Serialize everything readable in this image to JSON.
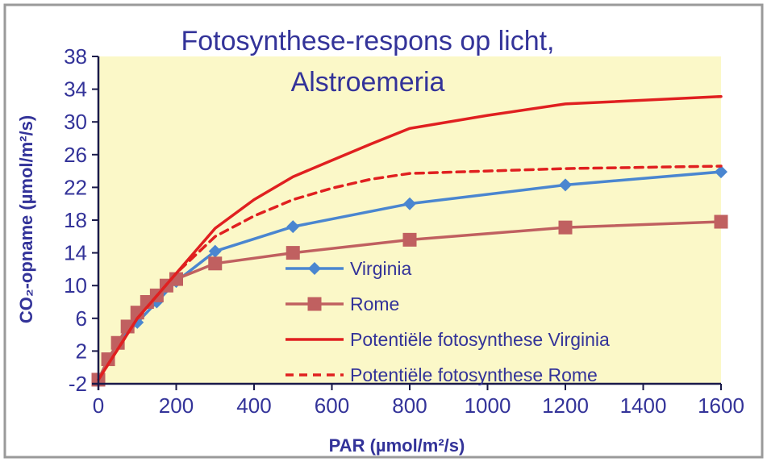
{
  "chart_data": {
    "type": "line",
    "title_lines": [
      "Fotosynthese-respons op licht,",
      "Alstroemeria"
    ],
    "xlabel": "PAR (µmol/m²/s)",
    "ylabel": "CO₂-opname (µmol/m²/s)",
    "xlim": [
      0,
      1600
    ],
    "ylim": [
      -2,
      38
    ],
    "x_ticks": [
      "0",
      "200",
      "400",
      "600",
      "800",
      "1000",
      "1200",
      "1400",
      "1600"
    ],
    "y_ticks": [
      "38",
      "34",
      "30",
      "26",
      "22",
      "18",
      "14",
      "10",
      "6",
      "2",
      "-2"
    ],
    "grid": false,
    "legend_position": "bottom-right",
    "colors": {
      "plot_background": "#fbf8c8",
      "frame_background": "#ffffff",
      "axis": "#1a1a4a",
      "text": "#333399"
    },
    "series": [
      {
        "name": "Virginia",
        "color": "#4a86d0",
        "marker": "diamond",
        "style": "solid",
        "points": [
          [
            0,
            -1.5
          ],
          [
            25,
            1
          ],
          [
            50,
            3
          ],
          [
            100,
            5.5
          ],
          [
            150,
            8
          ],
          [
            200,
            10.5
          ],
          [
            300,
            14.2
          ],
          [
            500,
            17.2
          ],
          [
            800,
            20
          ],
          [
            1200,
            22.3
          ],
          [
            1600,
            23.9
          ]
        ]
      },
      {
        "name": "Rome",
        "color": "#c06060",
        "marker": "square",
        "style": "solid",
        "points": [
          [
            0,
            -1.5
          ],
          [
            25,
            1
          ],
          [
            50,
            3
          ],
          [
            75,
            5
          ],
          [
            100,
            6.7
          ],
          [
            125,
            8
          ],
          [
            150,
            8.8
          ],
          [
            175,
            10
          ],
          [
            200,
            10.8
          ],
          [
            300,
            12.7
          ],
          [
            500,
            14
          ],
          [
            800,
            15.6
          ],
          [
            1200,
            17.1
          ],
          [
            1600,
            17.8
          ]
        ]
      },
      {
        "name": "Potentiële fotosynthese Virginia",
        "color": "#e02020",
        "marker": "none",
        "style": "solid",
        "points": [
          [
            0,
            -1.5
          ],
          [
            100,
            6
          ],
          [
            200,
            11.5
          ],
          [
            300,
            17
          ],
          [
            400,
            20.5
          ],
          [
            500,
            23.3
          ],
          [
            600,
            25.3
          ],
          [
            700,
            27.3
          ],
          [
            800,
            29.2
          ],
          [
            1000,
            30.8
          ],
          [
            1200,
            32.2
          ],
          [
            1600,
            33.1
          ]
        ]
      },
      {
        "name": "Potentiële fotosynthese Rome",
        "color": "#e02020",
        "marker": "none",
        "style": "dashed",
        "points": [
          [
            0,
            -1.5
          ],
          [
            100,
            6
          ],
          [
            200,
            11.5
          ],
          [
            300,
            16
          ],
          [
            400,
            18.5
          ],
          [
            500,
            20.5
          ],
          [
            600,
            21.9
          ],
          [
            700,
            23
          ],
          [
            800,
            23.7
          ],
          [
            1000,
            24
          ],
          [
            1200,
            24.3
          ],
          [
            1600,
            24.6
          ]
        ]
      }
    ]
  }
}
